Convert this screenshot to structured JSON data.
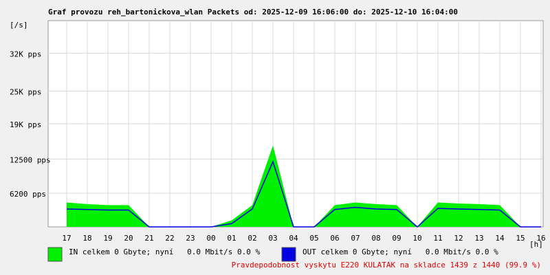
{
  "chart_data": {
    "type": "area",
    "title": "Graf provozu reh_bartonickova_wlan Packets od: 2025-12-09 16:06:00 do: 2025-12-10 16:04:00",
    "y_label": "[/s]",
    "x_label": "[h]",
    "categories": [
      "17",
      "18",
      "19",
      "20",
      "21",
      "22",
      "23",
      "00",
      "01",
      "02",
      "03",
      "04",
      "05",
      "06",
      "07",
      "08",
      "09",
      "10",
      "11",
      "12",
      "13",
      "14",
      "15",
      "16"
    ],
    "series": [
      {
        "name": "IN celkem 0 Gbyte; nyní   0.0 Mbit/s 0.0 %",
        "color": "#00f000",
        "values": [
          4500,
          4200,
          4000,
          4000,
          0,
          0,
          0,
          0,
          1200,
          4000,
          15000,
          0,
          0,
          4000,
          4500,
          4200,
          4000,
          0,
          4500,
          4300,
          4200,
          4000,
          0,
          0
        ]
      },
      {
        "name": "OUT celkem 0 Gbyte; nyní   0.0 Mbit/s 0.0 %",
        "color": "#0000e0",
        "values": [
          3300,
          3200,
          3100,
          3100,
          0,
          0,
          0,
          0,
          600,
          3300,
          12000,
          0,
          0,
          3200,
          3600,
          3300,
          3200,
          0,
          3400,
          3300,
          3200,
          3100,
          0,
          0
        ]
      }
    ],
    "ylim": [
      0,
      38000
    ],
    "yticks": [
      {
        "value": 6200,
        "label": "6200 pps"
      },
      {
        "value": 12500,
        "label": "12500 pps"
      },
      {
        "value": 19000,
        "label": "19K pps"
      },
      {
        "value": 25000,
        "label": "25K pps"
      },
      {
        "value": 32000,
        "label": "32K pps"
      }
    ],
    "grid": true,
    "annotation": "Pravdepodobnost vyskytu E220 KULATAK na skladce 1439 z 1440 (99.9 %)"
  }
}
